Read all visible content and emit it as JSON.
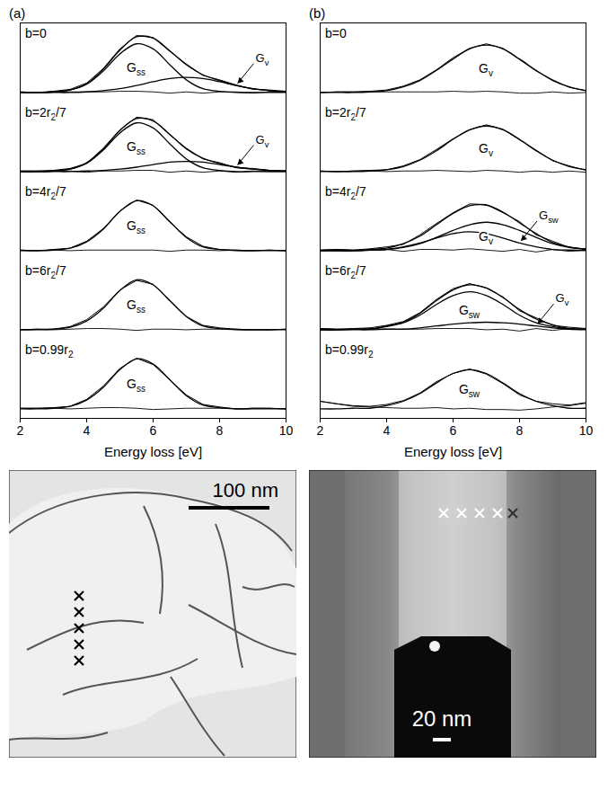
{
  "chart_data": [
    {
      "type": "line",
      "title": "(a)",
      "xlabel": "Energy loss [eV]",
      "color": "#000000",
      "xlim": [
        2,
        10
      ],
      "xticks": [
        2,
        4,
        6,
        8,
        10
      ],
      "ylim": [
        -0.15,
        1.1
      ],
      "tick_labels": "x",
      "x": [
        2,
        2.5,
        3,
        3.5,
        4,
        4.5,
        5,
        5.5,
        6,
        6.5,
        7,
        7.5,
        8,
        8.5,
        9,
        9.5,
        10
      ],
      "spectra": [
        {
          "label": "b=0",
          "measured": [
            0.01,
            0,
            0.02,
            0.05,
            0.15,
            0.38,
            0.69,
            0.9,
            0.87,
            0.65,
            0.45,
            0.27,
            0.2,
            0.12,
            0.05,
            0.04,
            0.02
          ],
          "fit": [
            0,
            0,
            0.01,
            0.04,
            0.14,
            0.37,
            0.67,
            0.88,
            0.86,
            0.66,
            0.44,
            0.28,
            0.19,
            0.11,
            0.06,
            0.03,
            0.01
          ],
          "residual": [
            0.01,
            0,
            0.01,
            0.01,
            0.01,
            0.01,
            0.02,
            0.02,
            0.01,
            -0.01,
            0.01,
            -0.01,
            0.01,
            0.01,
            -0.01,
            0.01,
            0.01
          ],
          "components": [
            {
              "name": "Gss",
              "values": [
                0,
                0,
                0.01,
                0.04,
                0.13,
                0.34,
                0.61,
                0.77,
                0.69,
                0.44,
                0.2,
                0.06,
                0.02,
                0,
                0,
                0,
                0
              ]
            },
            {
              "name": "Gv",
              "values": [
                0,
                0,
                0,
                0,
                0.01,
                0.03,
                0.06,
                0.11,
                0.17,
                0.22,
                0.24,
                0.22,
                0.17,
                0.11,
                0.06,
                0.03,
                0.01
              ]
            }
          ]
        },
        {
          "label": "b=2r2/7",
          "measured": [
            0.01,
            0.01,
            0.02,
            0.05,
            0.13,
            0.37,
            0.66,
            0.86,
            0.82,
            0.58,
            0.37,
            0.2,
            0.14,
            0.06,
            0.05,
            0.02,
            0.01
          ],
          "fit": [
            0,
            0,
            0.01,
            0.04,
            0.14,
            0.36,
            0.65,
            0.84,
            0.8,
            0.59,
            0.36,
            0.21,
            0.13,
            0.07,
            0.04,
            0.02,
            0.01
          ],
          "residual": [
            0.01,
            0.01,
            0.01,
            0.01,
            -0.01,
            0.01,
            0.01,
            0.02,
            0.02,
            -0.01,
            0.01,
            -0.01,
            0.01,
            -0.01,
            0.01,
            0,
            0
          ],
          "components": [
            {
              "name": "Gss",
              "values": [
                0,
                0,
                0.01,
                0.04,
                0.13,
                0.34,
                0.61,
                0.77,
                0.69,
                0.44,
                0.2,
                0.06,
                0.02,
                0,
                0,
                0,
                0
              ]
            },
            {
              "name": "Gv",
              "values": [
                0,
                0,
                0,
                0,
                0.01,
                0.02,
                0.04,
                0.07,
                0.11,
                0.15,
                0.16,
                0.15,
                0.11,
                0.07,
                0.04,
                0.02,
                0.01
              ]
            }
          ]
        },
        {
          "label": "b=4r2/7",
          "measured": [
            0.01,
            0,
            0.02,
            0.04,
            0.15,
            0.35,
            0.63,
            0.8,
            0.72,
            0.45,
            0.22,
            0.07,
            0.02,
            0.01,
            0,
            0.01,
            0
          ],
          "residual": [
            0.01,
            0,
            0.01,
            0,
            0.01,
            0.01,
            0.01,
            0.01,
            0.01,
            -0.01,
            0.01,
            0.01,
            0,
            0.01,
            0,
            0.01,
            0
          ],
          "components": [
            {
              "name": "Gss",
              "values": [
                0,
                0,
                0.01,
                0.04,
                0.14,
                0.34,
                0.62,
                0.79,
                0.71,
                0.46,
                0.21,
                0.06,
                0.02,
                0,
                0,
                0,
                0
              ]
            }
          ]
        },
        {
          "label": "b=6r2/7",
          "measured": [
            0,
            0.01,
            0.01,
            0.05,
            0.16,
            0.36,
            0.63,
            0.78,
            0.72,
            0.47,
            0.21,
            0.07,
            0.03,
            0.01,
            0,
            0,
            0.01
          ],
          "residual": [
            0,
            0.01,
            0,
            0.01,
            0.02,
            0.02,
            0.01,
            -0.01,
            0.01,
            0.01,
            0,
            0.01,
            0.01,
            0.01,
            0,
            0,
            0.01
          ],
          "components": [
            {
              "name": "Gss",
              "values": [
                0,
                0,
                0.01,
                0.04,
                0.14,
                0.34,
                0.62,
                0.79,
                0.71,
                0.46,
                0.21,
                0.06,
                0.02,
                0,
                0,
                0,
                0
              ]
            }
          ]
        },
        {
          "label": "b=0.99r2",
          "measured": [
            0.01,
            0.01,
            0.02,
            0.04,
            0.15,
            0.36,
            0.64,
            0.8,
            0.7,
            0.46,
            0.22,
            0.07,
            0.03,
            0,
            0.01,
            0.01,
            0
          ],
          "residual": [
            0.01,
            0.01,
            0.01,
            0,
            0.01,
            0.02,
            0.02,
            0.01,
            -0.01,
            0,
            0.01,
            0.01,
            0.01,
            0,
            0.01,
            0.01,
            0
          ],
          "components": [
            {
              "name": "Gss",
              "values": [
                0,
                0,
                0.01,
                0.04,
                0.14,
                0.34,
                0.62,
                0.79,
                0.71,
                0.46,
                0.21,
                0.06,
                0.02,
                0,
                0,
                0,
                0
              ]
            }
          ]
        }
      ]
    },
    {
      "type": "line",
      "title": "(b)",
      "xlabel": "Energy loss [eV]",
      "color": "#000000",
      "xlim": [
        2,
        10
      ],
      "xticks": [
        2,
        4,
        6,
        8,
        10
      ],
      "ylim": [
        -0.15,
        1.1
      ],
      "tick_labels": "x",
      "x": [
        2,
        2.5,
        3,
        3.5,
        4,
        4.5,
        5,
        5.5,
        6,
        6.5,
        7,
        7.5,
        8,
        8.5,
        9,
        9.5,
        10
      ],
      "spectra": [
        {
          "label": "b=0",
          "measured": [
            0,
            0.01,
            0.01,
            0.02,
            0.04,
            0.1,
            0.2,
            0.36,
            0.55,
            0.7,
            0.77,
            0.7,
            0.52,
            0.34,
            0.2,
            0.08,
            0.03
          ],
          "residual": [
            0,
            0.01,
            0.01,
            0.01,
            0.01,
            0.01,
            0.01,
            0.01,
            0.02,
            0.01,
            0.02,
            0.01,
            -0.01,
            -0.01,
            0.01,
            -0.01,
            0
          ],
          "components": [
            {
              "name": "Gv",
              "values": [
                0,
                0,
                0,
                0.01,
                0.03,
                0.09,
                0.19,
                0.35,
                0.53,
                0.69,
                0.75,
                0.69,
                0.53,
                0.35,
                0.19,
                0.09,
                0.03
              ]
            }
          ]
        },
        {
          "label": "b=2r2/7",
          "measured": [
            0.01,
            0,
            0.01,
            0.02,
            0.03,
            0.09,
            0.19,
            0.35,
            0.52,
            0.66,
            0.74,
            0.67,
            0.5,
            0.34,
            0.17,
            0.09,
            0.02
          ],
          "residual": [
            0.01,
            0,
            0.01,
            0.01,
            0,
            0.01,
            0.01,
            0.02,
            0.01,
            0,
            0.02,
            0.01,
            -0.01,
            0.01,
            -0.01,
            0.01,
            -0.01
          ],
          "components": [
            {
              "name": "Gv",
              "values": [
                0,
                0,
                0,
                0.01,
                0.03,
                0.08,
                0.18,
                0.33,
                0.51,
                0.66,
                0.72,
                0.66,
                0.51,
                0.33,
                0.18,
                0.08,
                0.03
              ]
            }
          ]
        },
        {
          "label": "b=4r2/7",
          "measured": [
            0.01,
            0.02,
            0.01,
            0.03,
            0.06,
            0.1,
            0.25,
            0.43,
            0.6,
            0.74,
            0.73,
            0.6,
            0.46,
            0.25,
            0.15,
            0.05,
            0.03
          ],
          "fit": [
            0,
            0,
            0,
            0.02,
            0.04,
            0.11,
            0.23,
            0.41,
            0.59,
            0.71,
            0.72,
            0.61,
            0.44,
            0.27,
            0.13,
            0.06,
            0.02
          ],
          "residual": [
            0.01,
            0.02,
            0.01,
            0.01,
            0.02,
            -0.01,
            0.02,
            0.02,
            0.01,
            0.03,
            0.01,
            -0.01,
            0.02,
            -0.02,
            0.02,
            -0.01,
            0.01
          ],
          "components": [
            {
              "name": "Gv",
              "values": [
                0,
                0,
                0,
                0.01,
                0.02,
                0.05,
                0.11,
                0.21,
                0.32,
                0.41,
                0.45,
                0.41,
                0.32,
                0.21,
                0.11,
                0.05,
                0.02
              ]
            },
            {
              "name": "Gsw",
              "values": [
                0,
                0,
                0,
                0.01,
                0.02,
                0.06,
                0.12,
                0.2,
                0.27,
                0.3,
                0.27,
                0.2,
                0.12,
                0.06,
                0.02,
                0.01,
                0
              ]
            }
          ]
        },
        {
          "label": "b=6r2/7",
          "measured": [
            0.02,
            0.01,
            0.02,
            0.03,
            0.07,
            0.13,
            0.27,
            0.48,
            0.65,
            0.73,
            0.66,
            0.52,
            0.3,
            0.19,
            0.07,
            0.04,
            0.02
          ],
          "fit": [
            0,
            0,
            0.01,
            0.01,
            0.06,
            0.12,
            0.26,
            0.46,
            0.63,
            0.71,
            0.66,
            0.51,
            0.32,
            0.17,
            0.08,
            0.02,
            0.01
          ],
          "residual": [
            0.02,
            0.01,
            0.01,
            0.02,
            0.01,
            0.01,
            0.01,
            0.02,
            0.02,
            0.02,
            0,
            0.01,
            -0.02,
            0.02,
            -0.01,
            0.02,
            0.01
          ],
          "components": [
            {
              "name": "Gsw",
              "values": [
                0,
                0,
                0.01,
                0.01,
                0.05,
                0.11,
                0.23,
                0.4,
                0.54,
                0.6,
                0.54,
                0.4,
                0.23,
                0.11,
                0.05,
                0.01,
                0.01
              ]
            },
            {
              "name": "Gv",
              "values": [
                0,
                0,
                0,
                0,
                0.01,
                0.01,
                0.03,
                0.06,
                0.09,
                0.11,
                0.12,
                0.11,
                0.09,
                0.06,
                0.03,
                0.01,
                0
              ]
            }
          ]
        },
        {
          "label": "b=0.99r2",
          "measured": [
            0.12,
            0.08,
            0.05,
            0.04,
            0.07,
            0.13,
            0.25,
            0.43,
            0.56,
            0.63,
            0.55,
            0.4,
            0.22,
            0.12,
            0.08,
            0.06,
            0.1
          ],
          "residual": [
            0.12,
            0.08,
            0.04,
            0.03,
            0.02,
            0.01,
            0.01,
            0.02,
            0,
            0.01,
            -0.01,
            -0.01,
            -0.02,
            0,
            0.03,
            0.05,
            0.09
          ],
          "components": [
            {
              "name": "Gsw",
              "values": [
                0,
                0,
                0.01,
                0.01,
                0.05,
                0.12,
                0.24,
                0.41,
                0.56,
                0.62,
                0.56,
                0.41,
                0.24,
                0.12,
                0.05,
                0.01,
                0.01
              ]
            }
          ]
        }
      ]
    }
  ],
  "images": [
    {
      "scale_bar": "100 nm",
      "markers": 5
    },
    {
      "scale_bar": "20 nm",
      "markers": 5
    }
  ]
}
